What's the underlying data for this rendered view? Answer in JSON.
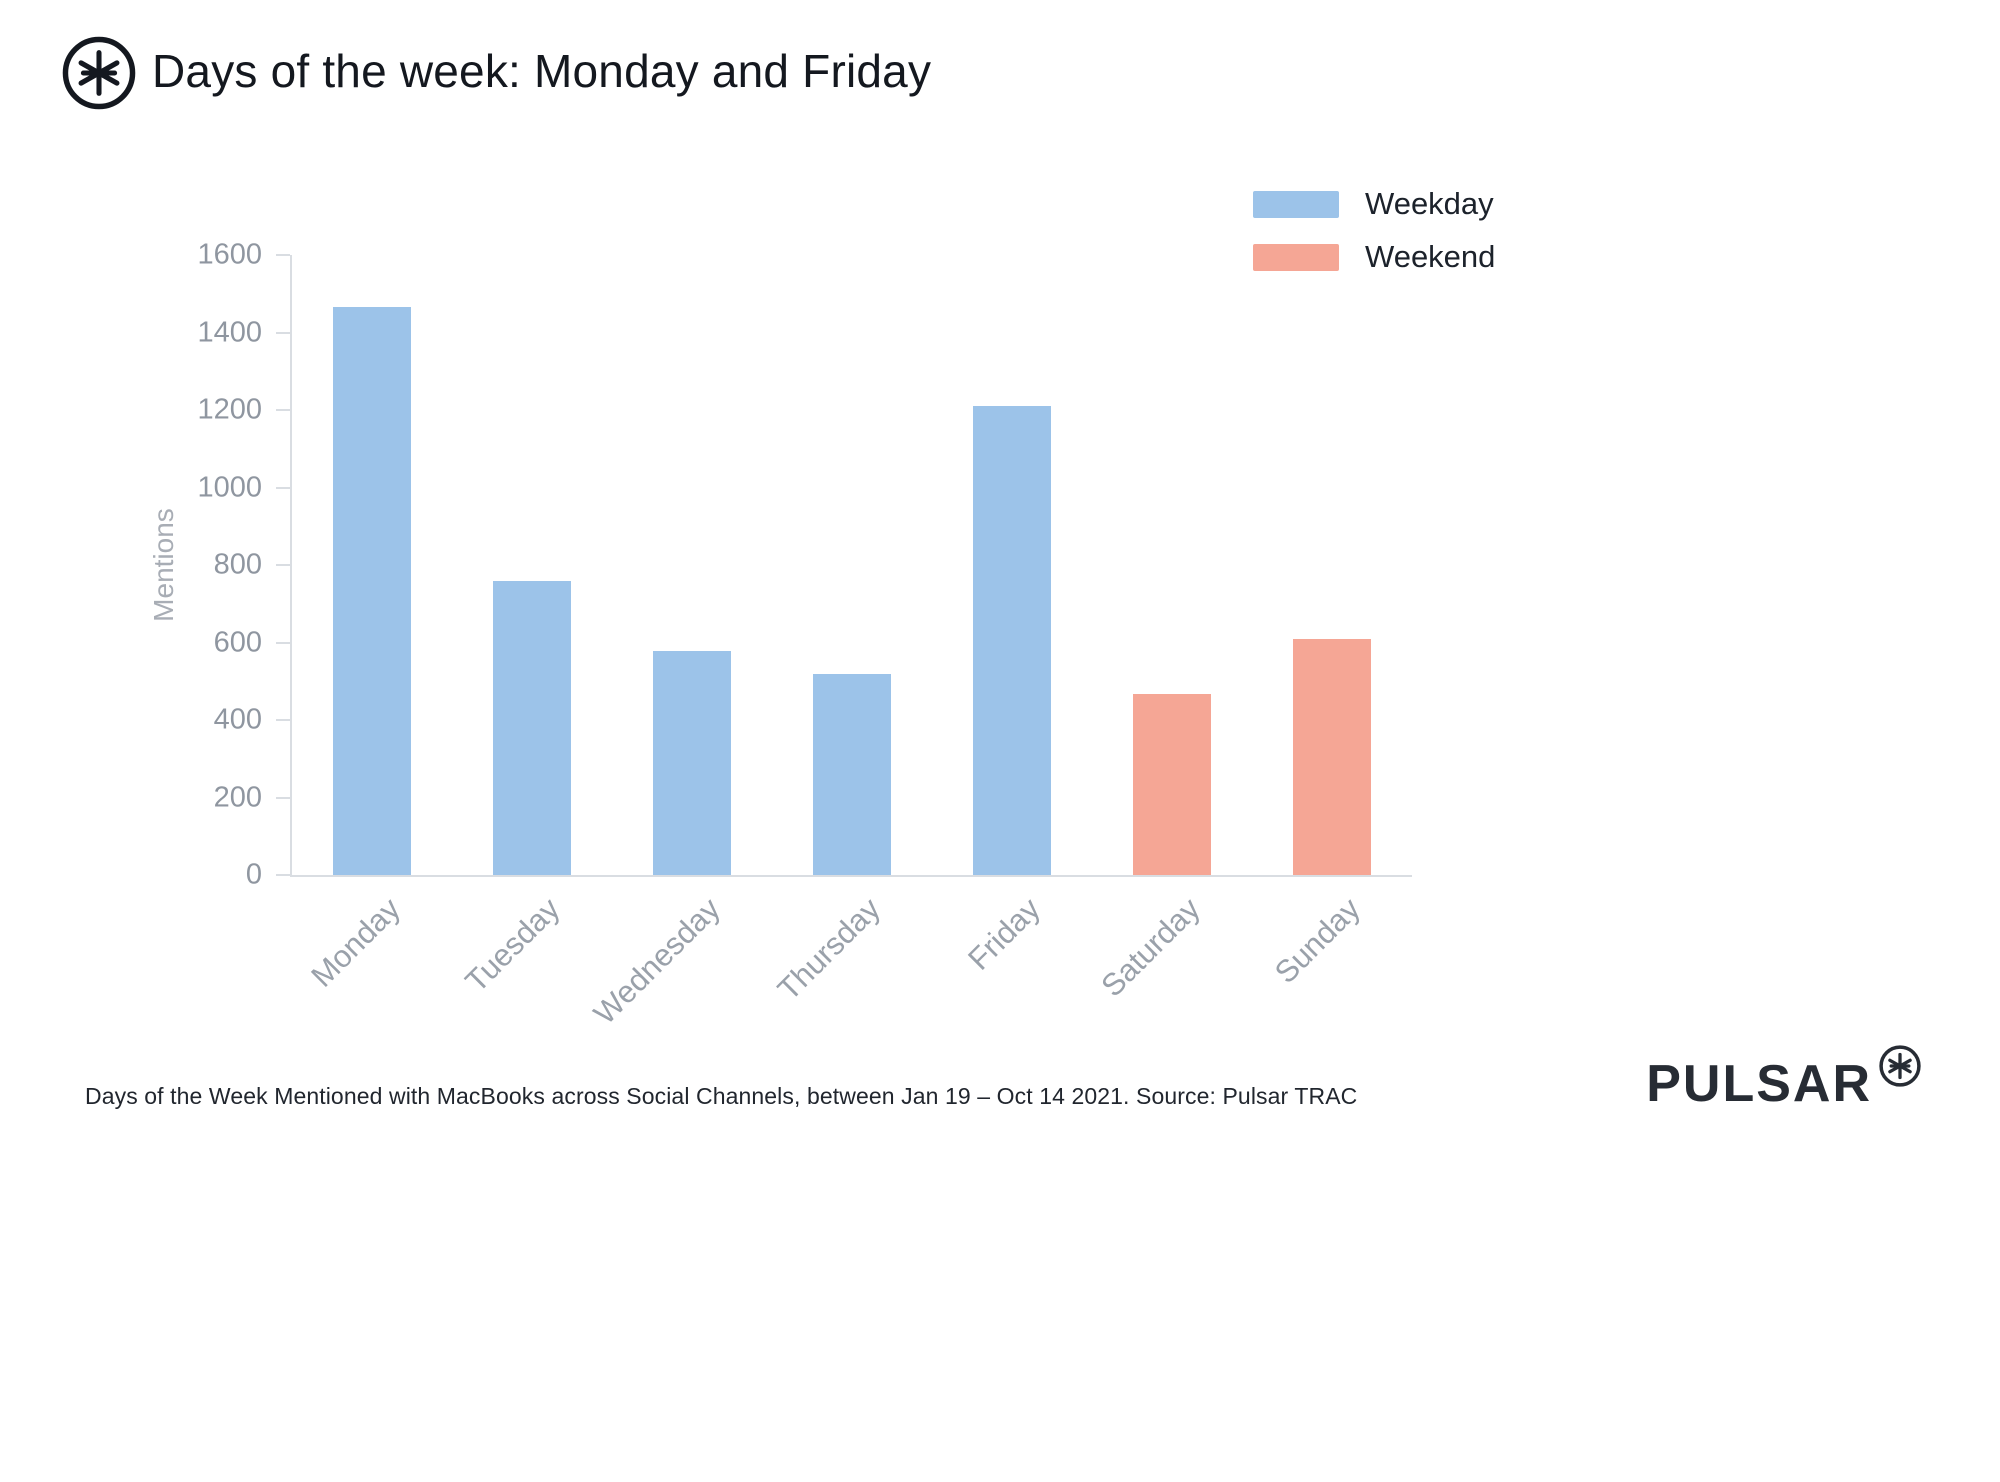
{
  "header": {
    "title": "Days of the week: Monday and Friday"
  },
  "chart_data": {
    "type": "bar",
    "title": "Days of the week: Monday and Friday",
    "xlabel": "",
    "ylabel": "Mentions",
    "categories": [
      "Monday",
      "Tuesday",
      "Wednesday",
      "Thursday",
      "Friday",
      "Saturday",
      "Sunday"
    ],
    "values": [
      1465,
      760,
      578,
      518,
      1210,
      468,
      610
    ],
    "groups": [
      "Weekday",
      "Weekday",
      "Weekday",
      "Weekday",
      "Weekday",
      "Weekend",
      "Weekend"
    ],
    "ylim": [
      0,
      1600
    ],
    "ytick_step": 200,
    "grid": false,
    "legend_position": "top-right",
    "legend": [
      {
        "label": "Weekday",
        "color": "#9cc3e9"
      },
      {
        "label": "Weekend",
        "color": "#f5a695"
      }
    ],
    "colors": {
      "axis": "#d9dde2",
      "tick_text": "#8f96a0",
      "weekday_bar": "#9cc3e9",
      "weekend_bar": "#f5a695"
    }
  },
  "footer": {
    "caption": "Days of the Week Mentioned with MacBooks across Social Channels, between Jan 19 – Oct 14 2021. Source: Pulsar TRAC",
    "brand": "PULSAR"
  }
}
